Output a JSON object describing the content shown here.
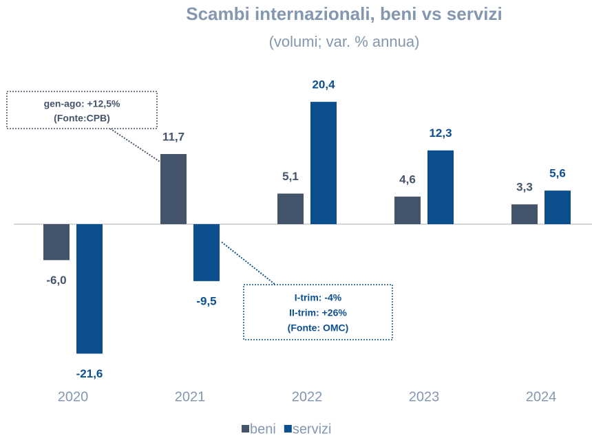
{
  "chart_data": {
    "type": "bar",
    "title": "Scambi internazionali, beni vs servizi",
    "subtitle": "(volumi; var. % annua)",
    "categories": [
      "2020",
      "2021",
      "2022",
      "2023",
      "2024"
    ],
    "series": [
      {
        "name": "beni",
        "color": "#44546a",
        "values": [
          -6.0,
          11.7,
          5.1,
          4.6,
          3.3
        ],
        "value_labels": [
          "-6,0",
          "11,7",
          "5,1",
          "4,6",
          "3,3"
        ]
      },
      {
        "name": "servizi",
        "color": "#0b4f8f",
        "values": [
          -21.6,
          -9.5,
          20.4,
          12.3,
          5.6
        ],
        "value_labels": [
          "-21,6",
          "-9,5",
          "20,4",
          "12,3",
          "5,6"
        ]
      }
    ],
    "ylim": [
      -25,
      25
    ],
    "annotations": [
      {
        "text": [
          "gen-ago: +12,5%",
          "(Fonte:CPB)"
        ]
      },
      {
        "text": [
          "I-trim: -4%",
          "II-trim: +26%",
          "(Fonte: OMC)"
        ]
      }
    ]
  }
}
